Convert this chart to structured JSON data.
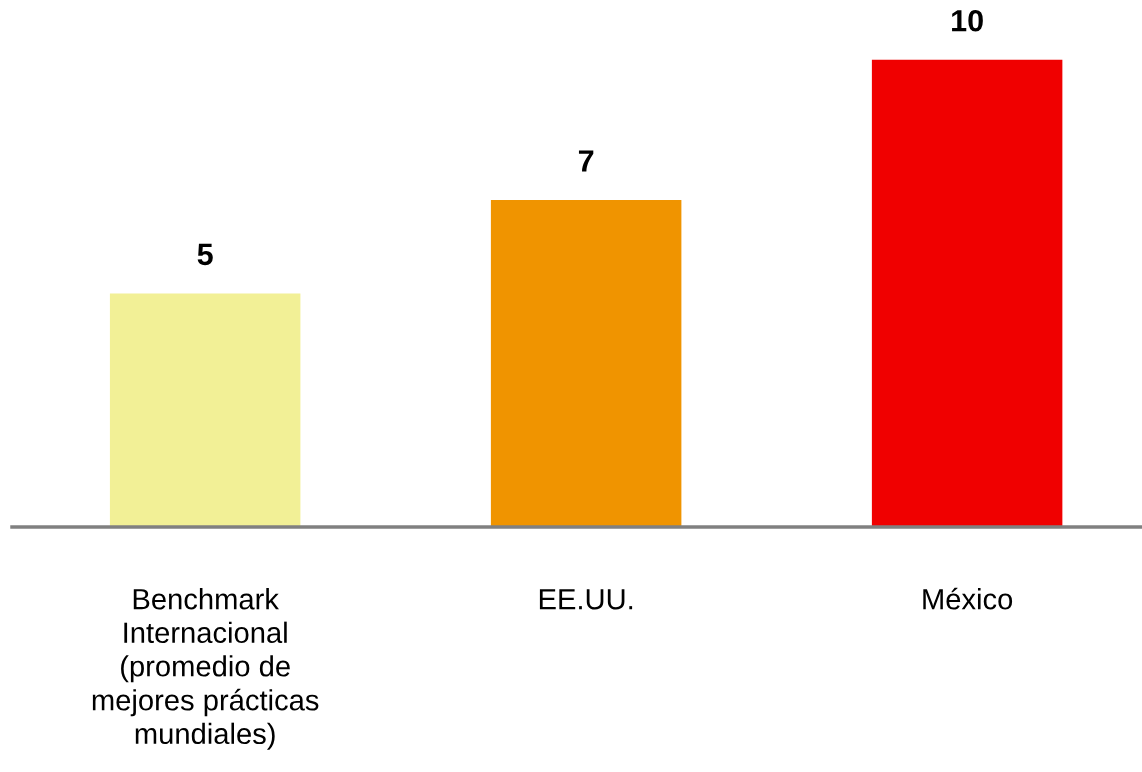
{
  "chart_data": {
    "type": "bar",
    "categories": [
      "Benchmark\nInternacional\n(promedio de\nmejores prácticas\nmundiales)",
      "EE.UU.",
      "México"
    ],
    "values": [
      5,
      7,
      10
    ],
    "colors": [
      "#f2f096",
      "#f09400",
      "#f00000"
    ],
    "data_labels": true
  }
}
